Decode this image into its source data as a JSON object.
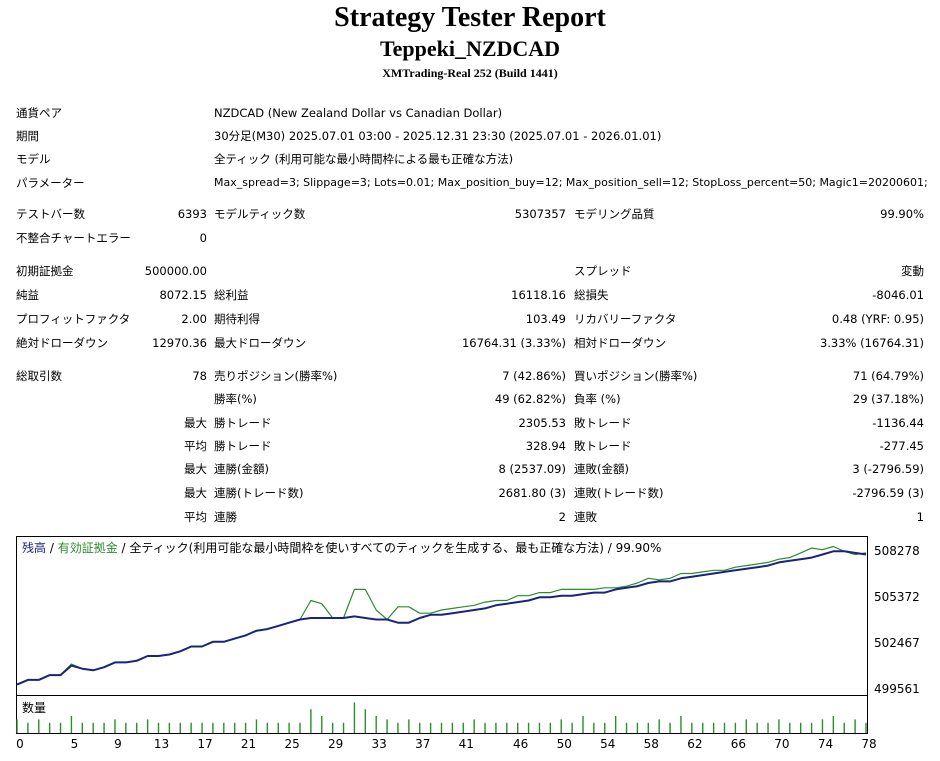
{
  "report": {
    "title": "Strategy Tester Report",
    "subtitle": "Teppeki_NZDCAD",
    "server": "XMTrading-Real 252 (Build 1441)"
  },
  "info": [
    {
      "label": "通貨ペア",
      "value": "NZDCAD (New Zealand Dollar vs Canadian Dollar)"
    },
    {
      "label": "期間",
      "value": "30分足(M30) 2025.07.01 03:00 - 2025.12.31 23:30 (2025.07.01 - 2026.01.01)"
    },
    {
      "label": "モデル",
      "value": "全ティック (利用可能な最小時間枠による最も正確な方法)"
    },
    {
      "label": "パラメーター",
      "value": "Max_spread=3; Slippage=3; Lots=0.01; Max_position_buy=12; Max_position_sell=12; StopLoss_percent=50; Magic1=20200601;"
    }
  ],
  "stats": {
    "bars_label": "テストバー数",
    "bars": "6393",
    "ticks_label": "モデルティック数",
    "ticks": "5307357",
    "quality_label": "モデリング品質",
    "quality": "99.90%",
    "errors_label": "不整合チャートエラー",
    "errors": "0",
    "deposit_label": "初期証拠金",
    "deposit": "500000.00",
    "spread_label": "スプレッド",
    "spread": "変動",
    "net_label": "純益",
    "net": "8072.15",
    "gross_profit_label": "総利益",
    "gross_profit": "16118.16",
    "gross_loss_label": "総損失",
    "gross_loss": "-8046.01",
    "pf_label": "プロフィットファクタ",
    "pf": "2.00",
    "expected_label": "期待利得",
    "expected": "103.49",
    "recovery_label": "リカバリーファクタ",
    "recovery": "0.48 (YRF: 0.95)",
    "abs_dd_label": "絶対ドローダウン",
    "abs_dd": "12970.36",
    "max_dd_label": "最大ドローダウン",
    "max_dd": "16764.31 (3.33%)",
    "rel_dd_label": "相対ドローダウン",
    "rel_dd": "3.33% (16764.31)",
    "trades_label": "総取引数",
    "trades": "78",
    "short_label": "売りポジション(勝率%)",
    "short": "7 (42.86%)",
    "long_label": "買いポジション(勝率%)",
    "long": "71 (64.79%)"
  },
  "trade_rows": [
    {
      "prefix": "",
      "l1": "勝率(%)",
      "v1": "49 (62.82%)",
      "l2": "負率 (%)",
      "v2": "29 (37.18%)"
    },
    {
      "prefix": "最大",
      "l1": "勝トレード",
      "v1": "2305.53",
      "l2": "敗トレード",
      "v2": "-1136.44"
    },
    {
      "prefix": "平均",
      "l1": "勝トレード",
      "v1": "328.94",
      "l2": "敗トレード",
      "v2": "-277.45"
    },
    {
      "prefix": "最大",
      "l1": "連勝(金額)",
      "v1": "8 (2537.09)",
      "l2": "連敗(金額)",
      "v2": "3 (-2796.59)"
    },
    {
      "prefix": "最大",
      "l1": "連勝(トレード数)",
      "v1": "2681.80 (3)",
      "l2": "連敗(トレード数)",
      "v2": "-2796.59 (3)"
    },
    {
      "prefix": "平均",
      "l1": "連勝",
      "v1": "2",
      "l2": "連敗",
      "v2": "1"
    }
  ],
  "chart_legend": {
    "balance": "残高",
    "sep1": " / ",
    "equity": "有効証拠金",
    "sep2": " / ",
    "rest": "全ティック(利用可能な最小時間枠を使いすべてのティックを生成する、最も正確な方法) / 99.90%",
    "volume_label": "数量"
  },
  "chart_data": {
    "type": "line",
    "colors": {
      "balance": "#1a237e",
      "equity": "#2e8b2e",
      "volume": "#2e8b2e"
    },
    "ylim": [
      499561,
      509200
    ],
    "yticks": [
      "499561",
      "502467",
      "505372",
      "508278"
    ],
    "xticks": [
      "0",
      "5",
      "9",
      "13",
      "17",
      "21",
      "25",
      "29",
      "33",
      "37",
      "41",
      "46",
      "50",
      "54",
      "58",
      "62",
      "66",
      "70",
      "74",
      "78"
    ],
    "x": [
      0,
      1,
      2,
      3,
      4,
      5,
      6,
      7,
      8,
      9,
      10,
      11,
      12,
      13,
      14,
      15,
      16,
      17,
      18,
      19,
      20,
      21,
      22,
      23,
      24,
      25,
      26,
      27,
      28,
      29,
      30,
      31,
      32,
      33,
      34,
      35,
      36,
      37,
      38,
      39,
      40,
      41,
      42,
      43,
      44,
      45,
      46,
      47,
      48,
      49,
      50,
      51,
      52,
      53,
      54,
      55,
      56,
      57,
      58,
      59,
      60,
      61,
      62,
      63,
      64,
      65,
      66,
      67,
      68,
      69,
      70,
      71,
      72,
      73,
      74,
      75,
      76,
      77,
      78
    ],
    "series": [
      {
        "name": "残高",
        "values": [
          499900,
          500200,
          500200,
          500500,
          500500,
          501100,
          500900,
          500800,
          501000,
          501300,
          501300,
          501400,
          501700,
          501700,
          501800,
          502000,
          502300,
          502300,
          502600,
          502600,
          502800,
          503000,
          503300,
          503400,
          503600,
          503800,
          504000,
          504100,
          504100,
          504100,
          504100,
          504200,
          504100,
          504000,
          504000,
          503800,
          503800,
          504100,
          504300,
          504300,
          504400,
          504500,
          504600,
          504700,
          504900,
          505000,
          505100,
          505200,
          505400,
          505400,
          505500,
          505500,
          505600,
          505700,
          505700,
          505900,
          506000,
          506100,
          506300,
          506400,
          506400,
          506600,
          506700,
          506800,
          506900,
          507000,
          507100,
          507200,
          507300,
          507400,
          507600,
          507700,
          507800,
          507900,
          508100,
          508300,
          508300,
          508200,
          508100
        ]
      },
      {
        "name": "有効証拠金",
        "values": [
          499900,
          500200,
          500200,
          500500,
          500500,
          501200,
          500900,
          500800,
          501000,
          501300,
          501300,
          501400,
          501700,
          501700,
          501800,
          502000,
          502300,
          502300,
          502600,
          502600,
          502800,
          503000,
          503300,
          503400,
          503600,
          503800,
          504000,
          505200,
          505000,
          504100,
          504100,
          505900,
          505900,
          504600,
          504000,
          504800,
          504800,
          504400,
          504400,
          504600,
          504700,
          504800,
          504900,
          505100,
          505200,
          505200,
          505500,
          505500,
          505700,
          505700,
          505900,
          505900,
          505900,
          505900,
          506000,
          506000,
          506100,
          506300,
          506600,
          506500,
          506600,
          506900,
          506900,
          507000,
          507100,
          507100,
          507300,
          507400,
          507500,
          507600,
          507800,
          507900,
          508200,
          508500,
          508400,
          508600,
          508300,
          508100,
          508200
        ]
      },
      {
        "name": "数量",
        "values": [
          1,
          1,
          1,
          1,
          1,
          1,
          1,
          1,
          1,
          1,
          1,
          1,
          1,
          1,
          1,
          1,
          1,
          1,
          1,
          1,
          1,
          1,
          1,
          1,
          1,
          1,
          1,
          1,
          1,
          1,
          1,
          1,
          1,
          1,
          1,
          1,
          1,
          1,
          1,
          1,
          1,
          1,
          1,
          1,
          1,
          1,
          1,
          1,
          1,
          1,
          1,
          1,
          1,
          1,
          1,
          1,
          1,
          1,
          1,
          1,
          1,
          1,
          1,
          1,
          1,
          1,
          1,
          1,
          1,
          1,
          1,
          1,
          1,
          1,
          1,
          1,
          1,
          1,
          1
        ]
      }
    ]
  }
}
